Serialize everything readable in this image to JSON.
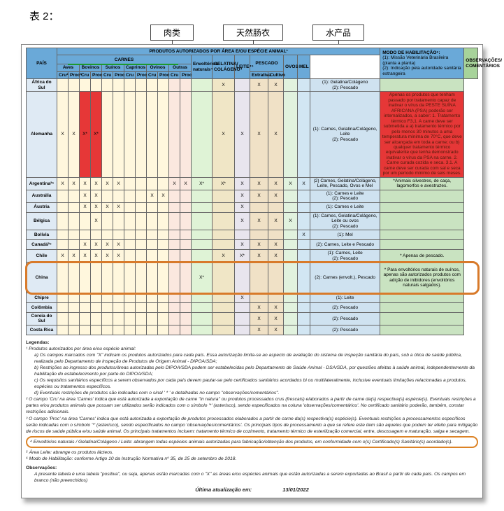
{
  "title2": "表 2：",
  "callouts": {
    "c1": "肉类",
    "c2": "天然肠衣",
    "c3": "水产品"
  },
  "headers": {
    "main": "PRODUTOS AUTORIZADOS POR ÁREA E/OU ESPÉCIE ANIMAL¹",
    "modo_t": "MODO DE HABILITAÇÃO⁶:",
    "modo_1": "(1): Missão Veterinária Brasileira (planta a planta)",
    "modo_2": "(2): Indicação pela autoridade sanitária estrangeira",
    "obs": "OBSERVAÇÕES/ COMENTÁRIOS",
    "pais": "PAÍS",
    "carnes": "CARNES",
    "env": "Envoltórios naturais⁴",
    "gel": "GELATINA/ COLÁGENO⁴",
    "leite": "LEITE⁴⁵",
    "pescado": "PESCADO",
    "ovos": "OVOS",
    "mel": "MEL",
    "aves": "Aves",
    "bov": "Bovinos",
    "sui": "Suínos",
    "cap": "Caprinos",
    "ovi": "Ovinos",
    "out": "Outras",
    "p_ext": "Extrativa",
    "p_cult": "Cultivo",
    "cru": "Cru²",
    "proc": "Proc³",
    "cru2": "Cru",
    "proc2": "Proc"
  },
  "colors": {
    "hdr": "#6aa9d8",
    "pais": "#dfeaf4",
    "carnes": "#fff7dd",
    "outras": "#fbe8df",
    "env": "#dff3d6",
    "gel": "#f0e6c6",
    "leite": "#e8e5ee",
    "pesc": "#f0e1c6",
    "ovos": "#e1f2de",
    "mel": "#d2e6f3",
    "hab": "#cfe2f0",
    "obs": "#c9e3c1",
    "red": "#e63737",
    "china_border": "#d87a2a",
    "green": "#1e9a2e"
  },
  "rows": [
    {
      "name": "África do Sul",
      "c": [
        "",
        "",
        "",
        "",
        "",
        "",
        "",
        "",
        "",
        "",
        "",
        ""
      ],
      "env": "",
      "gel": "X",
      "leite": "",
      "pe": "X",
      "pc": "X",
      "ov": "",
      "mel": "",
      "hab": "(1): Gelatina/Colágeno\n(2): Pescado",
      "obs": ""
    },
    {
      "name": "Alemanha",
      "tall": true,
      "c": [
        "X",
        "X",
        "X*",
        "X*",
        "",
        "",
        "",
        "",
        "",
        "",
        "",
        ""
      ],
      "red": [
        2,
        3
      ],
      "env": "",
      "gel": "X",
      "leite": "X",
      "pe": "X",
      "pc": "X",
      "ov": "",
      "mel": "",
      "hab": "(1): Carnes, Gelatina/Colágeno, Leite\n(2): Pescado",
      "obsR": "Apenas os produtos que tenham passado por tratamento capaz de inativar o vírus da PESTE SUÍNA AFRICANA (PSA) poderão ser internalizados, a saber: 1. Tratamento térmico F3,1. A carne deve ser submetida a a) tratamento térmico por pelo menos 30 minutos a uma temperatura mínima de 70°C, que deve ser alcançada em toda a carne; ou b) qualquer tratamento térmico equivalente que tenha demonstrado inativar o vírus da PSA na carne. 2. Carne curada cozida e seca. 3.1. A carne deve ser curada com sal e seca por um período mínimo de seis meses."
    },
    {
      "name": "Argentina²⁵",
      "c": [
        "X",
        "X",
        "X",
        "X",
        "X",
        "X",
        "",
        "",
        "",
        "",
        "X",
        "X"
      ],
      "xast": [
        10,
        11
      ],
      "X_env": "X*",
      "gel": "X*",
      "leite": "X",
      "pe": "X",
      "pc": "X",
      "ov": "X",
      "mel": "X",
      "hab": "(2) Carnes, Gelatina/Colágeno, Leite, Pescado, Ovos e Mel",
      "obs": "*Animais silvestres, de caça, lagomorfos e avestruzes.",
      "env": "X*"
    },
    {
      "name": "Austrália",
      "c": [
        "",
        "",
        "X",
        "X",
        "",
        "",
        "",
        "",
        "X",
        "X",
        "",
        ""
      ],
      "env": "",
      "gel": "",
      "leite": "X",
      "pe": "X",
      "pc": "X",
      "ov": "",
      "mel": "",
      "hab": "(1): Carnes e Leite\n(2): Pescado",
      "obs": ""
    },
    {
      "name": "Áustria",
      "c": [
        "",
        "",
        "X",
        "X",
        "X",
        "X",
        "",
        "",
        "",
        "",
        "",
        ""
      ],
      "env": "",
      "gel": "",
      "leite": "X",
      "pe": "",
      "pc": "",
      "ov": "",
      "mel": "",
      "hab": "(1): Carnes e Leite",
      "obs": ""
    },
    {
      "name": "Bélgica",
      "c": [
        "",
        "",
        "",
        "X",
        "",
        "",
        "",
        "",
        "",
        "",
        "",
        ""
      ],
      "env": "",
      "gel": "",
      "leite": "X",
      "pe": "X",
      "pc": "X",
      "ov": "X",
      "mel": "",
      "hab": "(1): Carnes, Gelatina/Colágeno, Leite ou ovos\n(2): Pescado",
      "obs": ""
    },
    {
      "name": "Bolívia",
      "c": [
        "",
        "",
        "",
        "",
        "",
        "",
        "",
        "",
        "",
        "",
        "",
        ""
      ],
      "env": "",
      "gel": "",
      "leite": "",
      "pe": "",
      "pc": "",
      "ov": "",
      "mel": "X",
      "hab": "(1): Mel",
      "obs": ""
    },
    {
      "name": "Canadá²⁵",
      "c": [
        "",
        "",
        "X",
        "X",
        "X",
        "X",
        "",
        "",
        "",
        "",
        "",
        ""
      ],
      "env": "",
      "gel": "",
      "leite": "X",
      "pe": "X",
      "pc": "X",
      "ov": "",
      "mel": "",
      "hab": "(2): Carnes, Leite e Pescado",
      "obs": ""
    },
    {
      "name": "Chile",
      "c": [
        "X",
        "X",
        "X",
        "X",
        "X",
        "X",
        "",
        "",
        "",
        "",
        "",
        ""
      ],
      "env": "",
      "gel": "X",
      "leite": "X*",
      "pe": "X",
      "pc": "X",
      "ov": "",
      "mel": "",
      "hab": "(1): Carnes, Leite\n(2): Pescado",
      "obs": "* Apenas de pescado."
    },
    {
      "name": "China",
      "china": true,
      "c": [
        "",
        "",
        "",
        "",
        "",
        "",
        "",
        "",
        "",
        "",
        "",
        ""
      ],
      "env": "X*",
      "gel": "",
      "leite": "",
      "pe": "",
      "pc": "",
      "ov": "",
      "mel": "",
      "hab": "(2): Carnes (envolt.), Pescado",
      "obs": "* Para envoltórios naturais de suínos, apenas são autorizados produtos com adição de inibidores (envoltórios naturais salgados)."
    },
    {
      "name": "Chipre",
      "c": [
        "",
        "",
        "",
        "",
        "",
        "",
        "",
        "",
        "",
        "",
        "",
        ""
      ],
      "env": "",
      "gel": "",
      "leite": "X",
      "pe": "",
      "pc": "",
      "ov": "",
      "mel": "",
      "hab": "(1): Leite",
      "obs": ""
    },
    {
      "name": "Colômbia",
      "c": [
        "",
        "",
        "",
        "",
        "",
        "",
        "",
        "",
        "",
        "",
        "",
        ""
      ],
      "env": "",
      "gel": "",
      "leite": "",
      "pe": "X",
      "pc": "X",
      "ov": "",
      "mel": "",
      "hab": "(2): Pescado",
      "obs": ""
    },
    {
      "name": "Coreia do Sul",
      "c": [
        "",
        "",
        "",
        "",
        "",
        "",
        "",
        "",
        "",
        "",
        "",
        ""
      ],
      "env": "",
      "gel": "",
      "leite": "",
      "pe": "X",
      "pc": "X",
      "ov": "",
      "mel": "",
      "hab": "(2): Pescado",
      "obs": ""
    },
    {
      "name": "Costa Rica",
      "c": [
        "",
        "",
        "",
        "",
        "",
        "",
        "",
        "",
        "",
        "",
        "",
        ""
      ],
      "env": "",
      "gel": "",
      "leite": "",
      "pe": "X",
      "pc": "X",
      "ov": "",
      "mel": "",
      "hab": "(2): Pescado",
      "obs": ""
    }
  ],
  "legend": {
    "t": "Legendas:",
    "l1": "¹ Produtos autorizados por área e/ou espécie animal:",
    "l1a": "a) Os campos marcados com \"X\" indicam os produtos autorizados para cada país. Essa autorização limita-se ao aspecto de avaliação do sistema de inspeção sanitária do país, sob a ótica de saúde pública, realizada pelo Departamento de Inspeção de Produtos de Origem Animal - DIPOA/SDA;",
    "l1b": "b) Restrições ao ingresso dos produtos/áreas autorizadas pelo DIPOA/SDA podem ser estabelecidas pelo Departamento de Saúde Animal - DSA/SDA, por questões afeitas à saúde animal, independentemente da habilitação do estabelecimento por parte do DIPOA/SDA;",
    "l1c": "c) Os requisitos sanitários específicos a serem observados por cada país devem pautar-se pelo certificados sanitários acordados bi ou multilateralmente, inclusive eventuais limitações relacionadas a produtos, espécies ou tratamentos específicos.",
    "l1d": "d) Eventuais restrições de produtos são indicadas com o sinal ' * ' e detalhadas no campo \"observações/comentários\".",
    "l2": "² O campo 'Cru' na área 'Carnes' indica que está autorizada a exportação de carne \"in natura\" ou produtos processados crus (frescais) elaborados a partir de carne da(s) respectiva(s) espécie(s). Eventuais restrições a partes e/ou produtos animais que possam ser utilizados serão indicados com o símbolo '*' (asterisco), sendo especificados na coluna 'observações/comentários'. No certificado sanitário poderão, também, constar restrições adicionais.",
    "l3": "³ O campo 'Proc' na área 'Carnes' indica que está autorizada a exportação de produtos processados elaborados a partir de carne da(s) respectiva(s) espécie(s). Eventuais restrições a processamentos específicos serão indicadas com o símbolo '*' (asterisco), sendo especificados no campo 'observações/comentários'. Os principais tipos de processamento a que se refere este item são aqueles que podem ter efeito para mitigação de riscos de saúde pública e/ou saúde animal. Os principais tratamentos incluem: tratamento térmico de cozimento, tratamento térmico de esterilização comercial, entre, desossagem e maturação, salga e secagem.",
    "l4": "⁴ Envoltórios naturais / Gelatina/Colágeno / Leite: abrangem todas espécies animais autorizadas para fabricação/obtenção dos produtos, em conformidade com o(s) Certificado(s) Sanitário(s) acordado(s).",
    "l5": "⁵ Área Leite: abrange os produtos lácteos.",
    "l6": "⁶ Modo de Habilitação: conforme Artigo 10 da Instrução Normativa nº 35, de 25 de setembro de 2018.",
    "obs_t": "Observações:",
    "obs1": "A presente tabela é uma tabela \"positiva\", ou seja, apenas estão marcadas com o \"X\" as áreas e/ou espécies animais que estão autorizadas a serem exportadas ao Brasil a partir de cada país. Os campos em branco (não preenchidos)"
  },
  "update": {
    "lbl": "Última atualização em:",
    "date": "13/01/2022"
  }
}
